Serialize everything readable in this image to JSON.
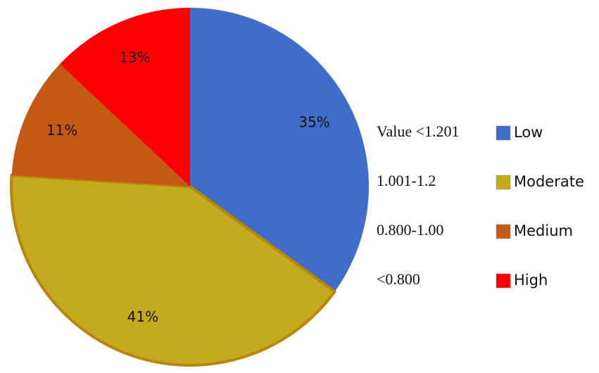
{
  "chart_data": {
    "type": "pie",
    "categories": [
      "Low",
      "Moderate",
      "Medium",
      "High"
    ],
    "values": [
      35,
      41,
      11,
      13
    ],
    "value_labels": [
      "35%",
      "41%",
      "11%",
      "13%"
    ],
    "colors": [
      "#3f6dc9",
      "#c4aa1e",
      "#c55a14",
      "#ff0000"
    ],
    "ranges": [
      "Value <1.201",
      "1.001-1.2",
      "0.800-1.00",
      "<0.800"
    ]
  }
}
